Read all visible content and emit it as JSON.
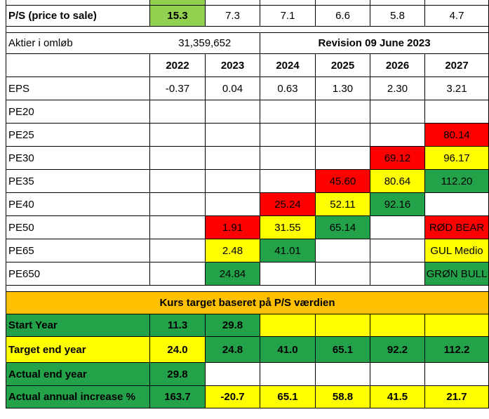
{
  "ps_row": {
    "label": "P/S (price to sale)",
    "values": [
      "15.3",
      "7.3",
      "7.1",
      "6.6",
      "5.8",
      "4.7"
    ]
  },
  "shares_row": {
    "label": "Aktier i omløb",
    "value": "31,359,652",
    "revision": "Revision 09 June 2023"
  },
  "years": [
    "2022",
    "2023",
    "2024",
    "2025",
    "2026",
    "2027"
  ],
  "eps_row": {
    "label": "EPS",
    "values": [
      "-0.37",
      "0.04",
      "0.63",
      "1.30",
      "2.30",
      "3.21"
    ]
  },
  "pe_rows": [
    {
      "label": "PE20",
      "values": [
        "",
        "",
        "",
        "",
        "",
        ""
      ]
    },
    {
      "label": "PE25",
      "values": [
        "",
        "",
        "",
        "",
        "",
        "80.14"
      ]
    },
    {
      "label": "PE30",
      "values": [
        "",
        "",
        "",
        "",
        "69.12",
        "96.17"
      ]
    },
    {
      "label": "PE35",
      "values": [
        "",
        "",
        "",
        "45.60",
        "80.64",
        "112.20"
      ]
    },
    {
      "label": "PE40",
      "values": [
        "",
        "",
        "25.24",
        "52.11",
        "92.16",
        ""
      ]
    },
    {
      "label": "PE50",
      "values": [
        "",
        "1.91",
        "31.55",
        "65.14",
        "",
        "RØD BEAR"
      ]
    },
    {
      "label": "PE65",
      "values": [
        "",
        "2.48",
        "41.01",
        "",
        "",
        "GUL Medio"
      ]
    },
    {
      "label": "PE650",
      "values": [
        "",
        "24.84",
        "",
        "",
        "",
        "GRØN BULL"
      ]
    }
  ],
  "section_title": "Kurs target baseret på P/S værdien",
  "target_rows": [
    {
      "label": "Start Year",
      "values": [
        "11.3",
        "29.8",
        "",
        "",
        "",
        ""
      ]
    },
    {
      "label": "Target end year",
      "values": [
        "24.0",
        "24.8",
        "41.0",
        "65.1",
        "92.2",
        "112.2"
      ]
    },
    {
      "label": "Actual end year",
      "values": [
        "29.8",
        "",
        "",
        "",
        "",
        ""
      ]
    },
    {
      "label": "Actual annual increase %",
      "values": [
        "163.7",
        "-20.7",
        "65.1",
        "58.8",
        "41.5",
        "21.7"
      ]
    }
  ],
  "colors": {
    "green": "#23a24a",
    "yellow": "#ffff00",
    "red": "#ff0000",
    "light_green": "#92d050",
    "orange": "#ffc000"
  }
}
